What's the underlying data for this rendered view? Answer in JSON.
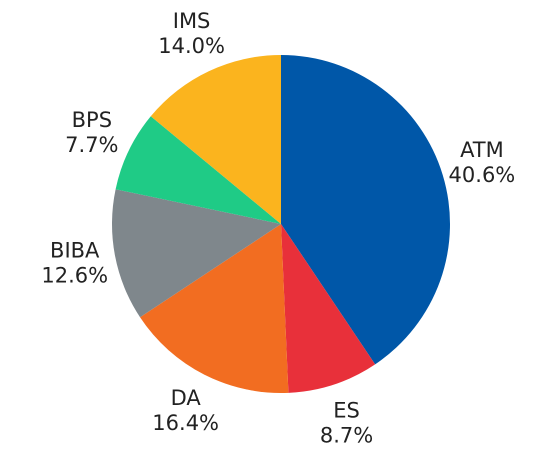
{
  "chart_data": {
    "type": "pie",
    "categories": [
      "ATM",
      "ES",
      "DA",
      "BIBA",
      "BPS",
      "IMS"
    ],
    "values": [
      40.6,
      8.7,
      16.4,
      12.6,
      7.7,
      14.0
    ],
    "value_labels": [
      "40.6%",
      "8.7%",
      "16.4%",
      "12.6%",
      "7.7%",
      "14.0%"
    ],
    "colors": [
      "#0057a8",
      "#e8303a",
      "#f26d21",
      "#7f878c",
      "#1fcb86",
      "#fbb41e"
    ]
  }
}
